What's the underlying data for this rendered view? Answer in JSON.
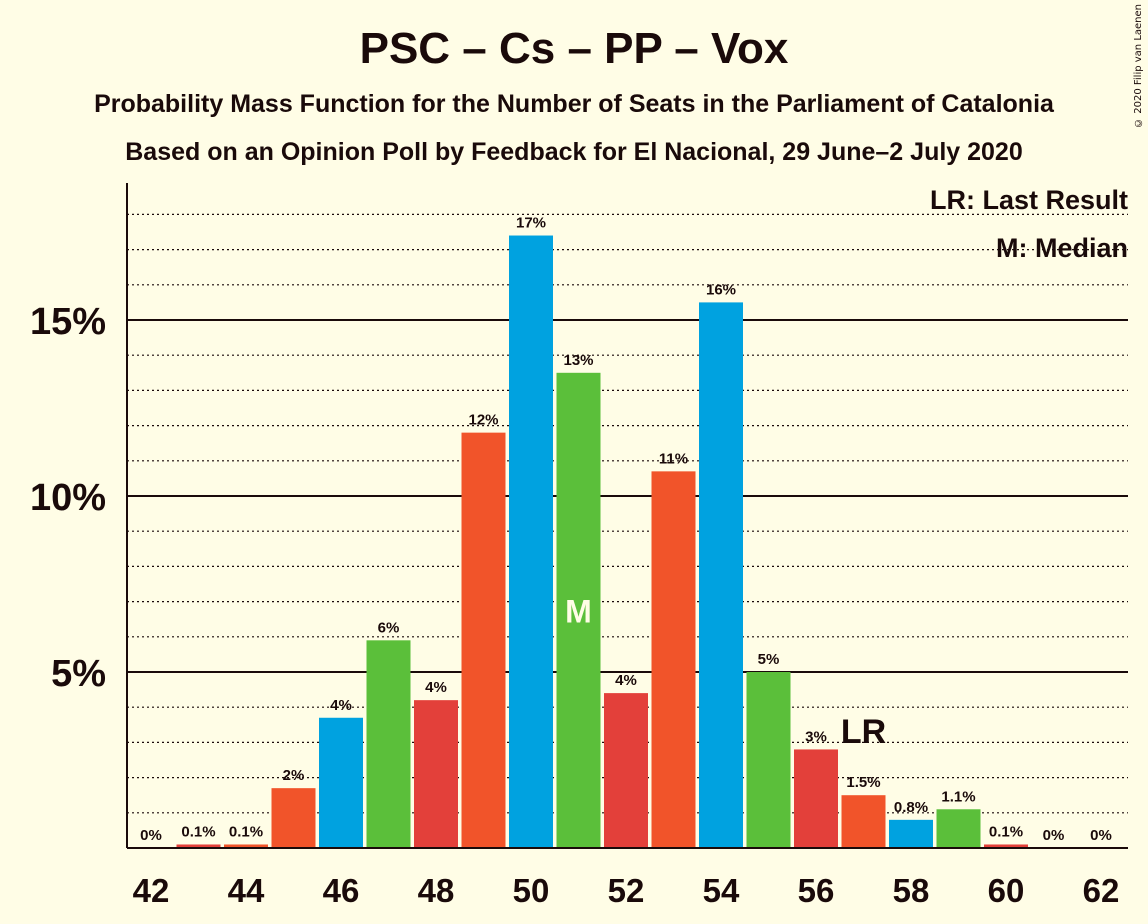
{
  "title": "PSC – Cs – PP – Vox",
  "subtitle": "Probability Mass Function for the Number of Seats in the Parliament of Catalonia",
  "subtitle2": "Based on an Opinion Poll by Feedback for El Nacional, 29 June–2 July 2020",
  "legend": {
    "lr": "LR: Last Result",
    "m": "M: Median"
  },
  "copyright": "© 2020 Filip van Laenen",
  "markers": {
    "median_label": "M",
    "lr_label": "LR"
  },
  "chart_data": {
    "type": "bar",
    "x": [
      42,
      43,
      44,
      45,
      46,
      47,
      48,
      49,
      50,
      51,
      52,
      53,
      54,
      55,
      56,
      57,
      58,
      59,
      60,
      61,
      62
    ],
    "values": [
      0,
      0.1,
      0.1,
      1.7,
      3.7,
      5.9,
      4.2,
      11.8,
      17.4,
      13.5,
      4.4,
      10.7,
      15.5,
      5.0,
      2.8,
      1.5,
      0.8,
      1.1,
      0.1,
      0,
      0
    ],
    "labels": [
      "0%",
      "0.1%",
      "0.1%",
      "2%",
      "4%",
      "6%",
      "4%",
      "12%",
      "17%",
      "13%",
      "4%",
      "11%",
      "16%",
      "5%",
      "3%",
      "1.5%",
      "0.8%",
      "1.1%",
      "0.1%",
      "0%",
      "0%"
    ],
    "colors": [
      "#F1542A",
      "#E3403A",
      "#F1542A",
      "#F1542A",
      "#00A2E0",
      "#5BBF3A",
      "#E3403A",
      "#F1542A",
      "#00A2E0",
      "#5BBF3A",
      "#E3403A",
      "#F1542A",
      "#00A2E0",
      "#5BBF3A",
      "#E3403A",
      "#F1542A",
      "#00A2E0",
      "#5BBF3A",
      "#E3403A",
      "#F1542A",
      "#00A2E0"
    ],
    "xticks": [
      "42",
      "44",
      "46",
      "48",
      "50",
      "52",
      "54",
      "56",
      "58",
      "60",
      "62"
    ],
    "yticks": [
      5,
      10,
      15
    ],
    "ytick_labels": [
      "5%",
      "10%",
      "15%"
    ],
    "ylim": [
      0,
      19
    ],
    "median_seat": 51,
    "last_result_seat": 57
  }
}
